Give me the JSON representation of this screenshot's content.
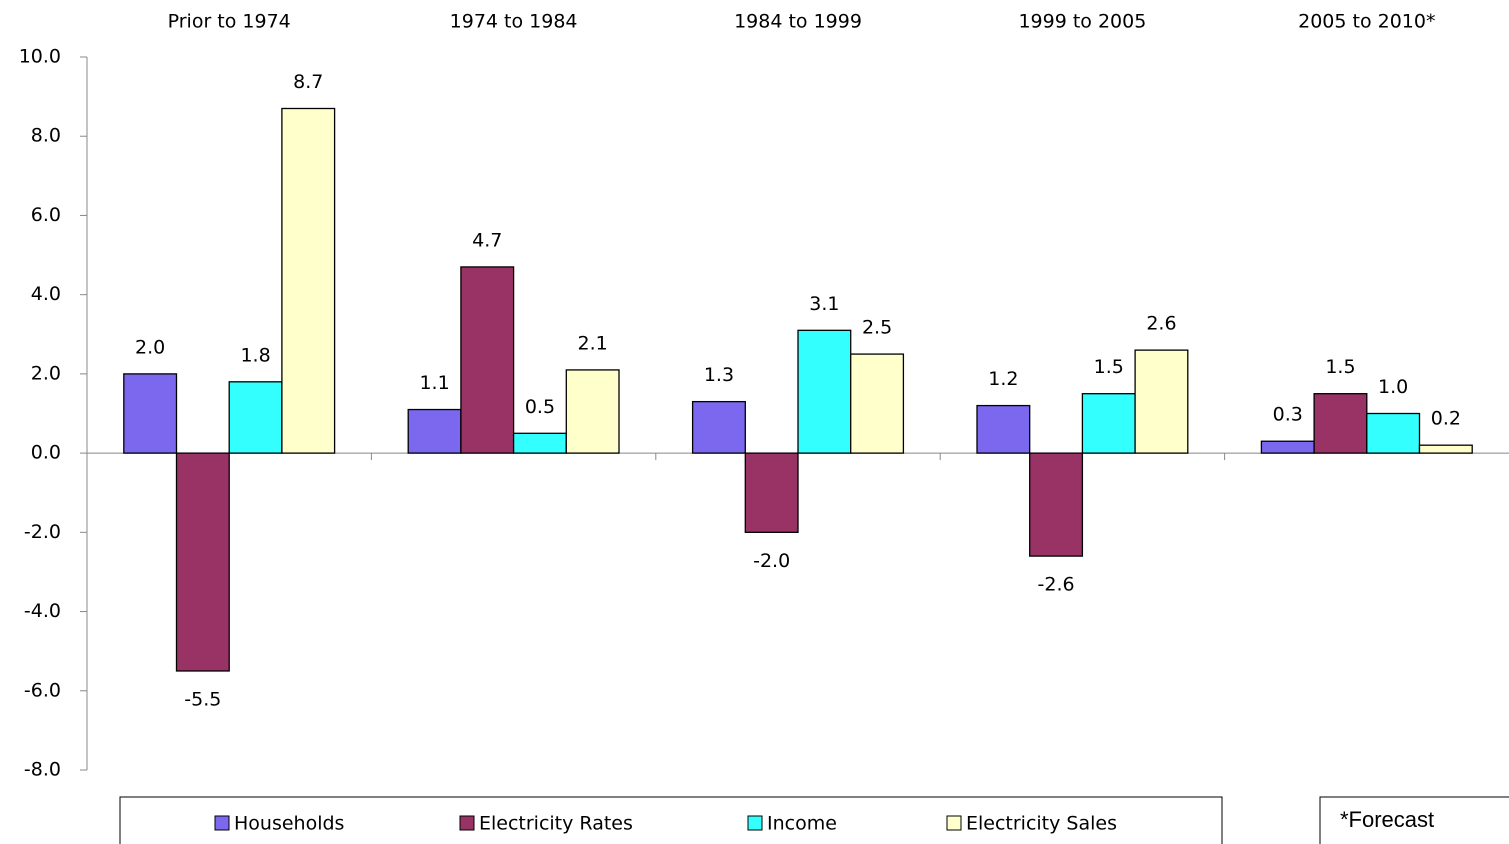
{
  "chart_data": {
    "type": "bar",
    "categories": [
      "Prior to 1974",
      "1974 to 1984",
      "1984 to 1999",
      "1999 to 2005",
      "2005 to 2010*"
    ],
    "series": [
      {
        "name": "Households",
        "color": "#7b68ee",
        "values": [
          2.0,
          1.1,
          1.3,
          1.2,
          0.3
        ],
        "value_labels": [
          "2.0",
          "1.1",
          "1.3",
          "1.2",
          "0.3"
        ]
      },
      {
        "name": "Electricity Rates",
        "color": "#993366",
        "values": [
          -5.5,
          4.7,
          -2.0,
          -2.6,
          1.5
        ],
        "value_labels": [
          "-5.5",
          "4.7",
          "-2.0",
          "-2.6",
          "1.5"
        ]
      },
      {
        "name": "Income",
        "color": "#33ffff",
        "values": [
          1.8,
          0.5,
          3.1,
          1.5,
          1.0
        ],
        "value_labels": [
          "1.8",
          "0.5",
          "3.1",
          "1.5",
          "1.0"
        ]
      },
      {
        "name": "Electricity Sales",
        "color": "#ffffcc",
        "values": [
          8.7,
          2.1,
          2.5,
          2.6,
          0.2
        ],
        "value_labels": [
          "8.7",
          "2.1",
          "2.5",
          "2.6",
          "0.2"
        ]
      }
    ],
    "ylim": [
      -8,
      10
    ],
    "yticks": [
      {
        "value": -8,
        "label": "-8.0"
      },
      {
        "value": -6,
        "label": "-6.0"
      },
      {
        "value": -4,
        "label": "-4.0"
      },
      {
        "value": -2,
        "label": "-2.0"
      },
      {
        "value": 0,
        "label": "0.0"
      },
      {
        "value": 2,
        "label": "2.0"
      },
      {
        "value": 4,
        "label": "4.0"
      },
      {
        "value": 6,
        "label": "6.0"
      },
      {
        "value": 8,
        "label": "8.0"
      },
      {
        "value": 10,
        "label": "10.0"
      }
    ],
    "grid": false,
    "legend": "bottom",
    "annotation": "*Forecast"
  }
}
